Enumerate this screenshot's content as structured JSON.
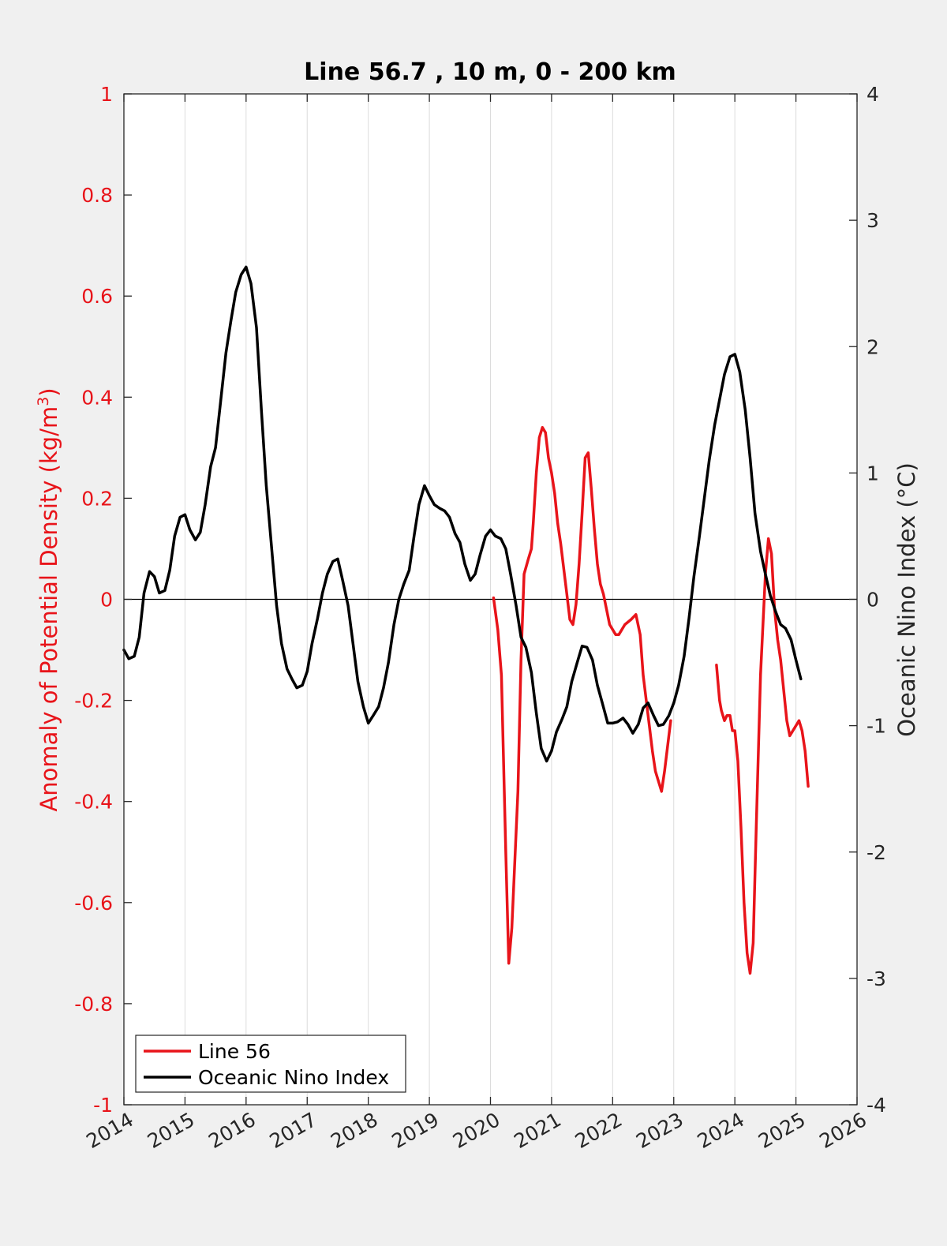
{
  "colors": {
    "background": "#f0f0f0",
    "axes_bg": "#ffffff",
    "line56": "#e8141a",
    "oni": "#000000",
    "grid": "#dcdcdc"
  },
  "chart_data": {
    "type": "line",
    "title": "Line 56.7 , 10 m, 0 - 200 km",
    "ylabel_left": "Anomaly of Potential Density (kg/m",
    "ylabel_left_sup": "3",
    "ylabel_left_close": ")",
    "ylabel_right": "Oceanic Nino Index (°C)",
    "xlim": [
      2014,
      2026
    ],
    "ylim_left": [
      -1,
      1
    ],
    "ylim_right": [
      -4,
      4
    ],
    "x_ticks": [
      "2014",
      "2015",
      "2016",
      "2017",
      "2018",
      "2019",
      "2020",
      "2021",
      "2022",
      "2023",
      "2024",
      "2025",
      "2026"
    ],
    "y_ticks_left": [
      "1",
      "0.8",
      "0.6",
      "0.4",
      "0.2",
      "0",
      "-0.2",
      "-0.4",
      "-0.6",
      "-0.8",
      "-1"
    ],
    "y_ticks_right": [
      "4",
      "3",
      "2",
      "1",
      "0",
      "-1",
      "-2",
      "-3",
      "-4"
    ],
    "grid": "vertical",
    "zero_line": true,
    "legend_position": "bottom-left",
    "series": [
      {
        "name": "Line 56",
        "axis": "left",
        "color": "#e8141a",
        "segments": [
          [
            [
              2020.05,
              0.003
            ],
            [
              2020.12,
              -0.06
            ],
            [
              2020.18,
              -0.15
            ],
            [
              2020.25,
              -0.5
            ],
            [
              2020.3,
              -0.72
            ],
            [
              2020.35,
              -0.65
            ],
            [
              2020.45,
              -0.38
            ],
            [
              2020.5,
              -0.12
            ],
            [
              2020.55,
              0.05
            ],
            [
              2020.62,
              0.08
            ],
            [
              2020.67,
              0.1
            ],
            [
              2020.7,
              0.15
            ],
            [
              2020.75,
              0.25
            ],
            [
              2020.8,
              0.32
            ],
            [
              2020.85,
              0.34
            ],
            [
              2020.9,
              0.33
            ],
            [
              2020.95,
              0.28
            ],
            [
              2021.0,
              0.25
            ],
            [
              2021.05,
              0.21
            ],
            [
              2021.1,
              0.15
            ],
            [
              2021.15,
              0.11
            ],
            [
              2021.2,
              0.06
            ],
            [
              2021.25,
              0.01
            ],
            [
              2021.3,
              -0.04
            ],
            [
              2021.35,
              -0.05
            ],
            [
              2021.4,
              -0.01
            ],
            [
              2021.45,
              0.07
            ],
            [
              2021.5,
              0.17
            ],
            [
              2021.55,
              0.28
            ],
            [
              2021.6,
              0.29
            ],
            [
              2021.65,
              0.22
            ],
            [
              2021.7,
              0.14
            ],
            [
              2021.75,
              0.07
            ],
            [
              2021.8,
              0.03
            ],
            [
              2021.85,
              0.01
            ],
            [
              2021.9,
              -0.02
            ],
            [
              2021.95,
              -0.05
            ],
            [
              2022.05,
              -0.07
            ],
            [
              2022.1,
              -0.07
            ],
            [
              2022.2,
              -0.05
            ],
            [
              2022.3,
              -0.04
            ],
            [
              2022.38,
              -0.03
            ],
            [
              2022.45,
              -0.07
            ],
            [
              2022.5,
              -0.15
            ],
            [
              2022.55,
              -0.2
            ],
            [
              2022.6,
              -0.25
            ],
            [
              2022.65,
              -0.3
            ],
            [
              2022.7,
              -0.34
            ],
            [
              2022.75,
              -0.36
            ],
            [
              2022.8,
              -0.38
            ],
            [
              2022.85,
              -0.34
            ],
            [
              2022.95,
              -0.24
            ]
          ],
          [
            [
              2023.7,
              -0.13
            ],
            [
              2023.75,
              -0.2
            ],
            [
              2023.78,
              -0.22
            ],
            [
              2023.83,
              -0.24
            ],
            [
              2023.87,
              -0.23
            ],
            [
              2023.92,
              -0.23
            ],
            [
              2023.96,
              -0.26
            ],
            [
              2024.0,
              -0.26
            ],
            [
              2024.05,
              -0.32
            ],
            [
              2024.1,
              -0.45
            ],
            [
              2024.15,
              -0.6
            ],
            [
              2024.2,
              -0.7
            ],
            [
              2024.25,
              -0.74
            ],
            [
              2024.3,
              -0.68
            ],
            [
              2024.35,
              -0.45
            ],
            [
              2024.42,
              -0.15
            ],
            [
              2024.5,
              0.05
            ],
            [
              2024.55,
              0.12
            ],
            [
              2024.6,
              0.09
            ],
            [
              2024.65,
              -0.02
            ],
            [
              2024.7,
              -0.08
            ],
            [
              2024.75,
              -0.12
            ],
            [
              2024.8,
              -0.18
            ],
            [
              2024.85,
              -0.24
            ],
            [
              2024.9,
              -0.27
            ],
            [
              2024.95,
              -0.26
            ],
            [
              2025.0,
              -0.25
            ],
            [
              2025.05,
              -0.24
            ],
            [
              2025.1,
              -0.26
            ],
            [
              2025.15,
              -0.3
            ],
            [
              2025.2,
              -0.37
            ]
          ]
        ]
      },
      {
        "name": "Oceanic Nino Index",
        "axis": "right",
        "color": "#000000",
        "segments": [
          [
            [
              2014.0,
              -0.4
            ],
            [
              2014.08,
              -0.47
            ],
            [
              2014.17,
              -0.45
            ],
            [
              2014.25,
              -0.3
            ],
            [
              2014.33,
              0.05
            ],
            [
              2014.42,
              0.22
            ],
            [
              2014.5,
              0.18
            ],
            [
              2014.58,
              0.05
            ],
            [
              2014.67,
              0.07
            ],
            [
              2014.75,
              0.23
            ],
            [
              2014.83,
              0.5
            ],
            [
              2014.92,
              0.65
            ],
            [
              2015.0,
              0.67
            ],
            [
              2015.08,
              0.55
            ],
            [
              2015.17,
              0.47
            ],
            [
              2015.25,
              0.53
            ],
            [
              2015.33,
              0.75
            ],
            [
              2015.42,
              1.05
            ],
            [
              2015.5,
              1.2
            ],
            [
              2015.58,
              1.55
            ],
            [
              2015.67,
              1.95
            ],
            [
              2015.75,
              2.2
            ],
            [
              2015.83,
              2.43
            ],
            [
              2015.92,
              2.57
            ],
            [
              2016.0,
              2.63
            ],
            [
              2016.08,
              2.5
            ],
            [
              2016.17,
              2.15
            ],
            [
              2016.25,
              1.5
            ],
            [
              2016.33,
              0.9
            ],
            [
              2016.42,
              0.4
            ],
            [
              2016.5,
              -0.05
            ],
            [
              2016.58,
              -0.35
            ],
            [
              2016.67,
              -0.55
            ],
            [
              2016.75,
              -0.63
            ],
            [
              2016.83,
              -0.7
            ],
            [
              2016.92,
              -0.68
            ],
            [
              2017.0,
              -0.57
            ],
            [
              2017.08,
              -0.35
            ],
            [
              2017.17,
              -0.15
            ],
            [
              2017.25,
              0.05
            ],
            [
              2017.33,
              0.2
            ],
            [
              2017.42,
              0.3
            ],
            [
              2017.5,
              0.32
            ],
            [
              2017.58,
              0.15
            ],
            [
              2017.67,
              -0.05
            ],
            [
              2017.75,
              -0.35
            ],
            [
              2017.83,
              -0.65
            ],
            [
              2017.92,
              -0.85
            ],
            [
              2018.0,
              -0.98
            ],
            [
              2018.08,
              -0.92
            ],
            [
              2018.17,
              -0.85
            ],
            [
              2018.25,
              -0.7
            ],
            [
              2018.33,
              -0.5
            ],
            [
              2018.42,
              -0.2
            ],
            [
              2018.5,
              0.0
            ],
            [
              2018.58,
              0.12
            ],
            [
              2018.67,
              0.23
            ],
            [
              2018.75,
              0.5
            ],
            [
              2018.83,
              0.75
            ],
            [
              2018.92,
              0.9
            ],
            [
              2019.0,
              0.82
            ],
            [
              2019.08,
              0.75
            ],
            [
              2019.17,
              0.72
            ],
            [
              2019.25,
              0.7
            ],
            [
              2019.33,
              0.65
            ],
            [
              2019.42,
              0.52
            ],
            [
              2019.5,
              0.45
            ],
            [
              2019.58,
              0.28
            ],
            [
              2019.67,
              0.15
            ],
            [
              2019.75,
              0.2
            ],
            [
              2019.83,
              0.35
            ],
            [
              2019.92,
              0.5
            ],
            [
              2020.0,
              0.55
            ],
            [
              2020.08,
              0.5
            ],
            [
              2020.17,
              0.48
            ],
            [
              2020.25,
              0.4
            ],
            [
              2020.33,
              0.2
            ],
            [
              2020.42,
              -0.05
            ],
            [
              2020.5,
              -0.3
            ],
            [
              2020.58,
              -0.38
            ],
            [
              2020.67,
              -0.58
            ],
            [
              2020.75,
              -0.9
            ],
            [
              2020.83,
              -1.18
            ],
            [
              2020.92,
              -1.28
            ],
            [
              2021.0,
              -1.2
            ],
            [
              2021.08,
              -1.05
            ],
            [
              2021.17,
              -0.95
            ],
            [
              2021.25,
              -0.85
            ],
            [
              2021.33,
              -0.65
            ],
            [
              2021.42,
              -0.5
            ],
            [
              2021.5,
              -0.37
            ],
            [
              2021.58,
              -0.38
            ],
            [
              2021.67,
              -0.48
            ],
            [
              2021.75,
              -0.68
            ],
            [
              2021.83,
              -0.82
            ],
            [
              2021.92,
              -0.98
            ],
            [
              2022.0,
              -0.98
            ],
            [
              2022.08,
              -0.97
            ],
            [
              2022.17,
              -0.94
            ],
            [
              2022.25,
              -0.99
            ],
            [
              2022.33,
              -1.06
            ],
            [
              2022.42,
              -0.99
            ],
            [
              2022.5,
              -0.86
            ],
            [
              2022.58,
              -0.82
            ],
            [
              2022.67,
              -0.92
            ],
            [
              2022.75,
              -1.0
            ],
            [
              2022.83,
              -0.99
            ],
            [
              2022.92,
              -0.92
            ],
            [
              2023.0,
              -0.82
            ],
            [
              2023.08,
              -0.68
            ],
            [
              2023.17,
              -0.45
            ],
            [
              2023.25,
              -0.15
            ],
            [
              2023.33,
              0.18
            ],
            [
              2023.42,
              0.5
            ],
            [
              2023.5,
              0.8
            ],
            [
              2023.58,
              1.1
            ],
            [
              2023.67,
              1.38
            ],
            [
              2023.75,
              1.58
            ],
            [
              2023.83,
              1.78
            ],
            [
              2023.92,
              1.92
            ],
            [
              2024.0,
              1.94
            ],
            [
              2024.08,
              1.8
            ],
            [
              2024.17,
              1.5
            ],
            [
              2024.25,
              1.12
            ],
            [
              2024.33,
              0.68
            ],
            [
              2024.42,
              0.38
            ],
            [
              2024.5,
              0.2
            ],
            [
              2024.58,
              0.03
            ],
            [
              2024.67,
              -0.1
            ],
            [
              2024.75,
              -0.2
            ],
            [
              2024.83,
              -0.23
            ],
            [
              2024.92,
              -0.32
            ],
            [
              2025.0,
              -0.48
            ],
            [
              2025.08,
              -0.63
            ]
          ]
        ]
      }
    ]
  }
}
